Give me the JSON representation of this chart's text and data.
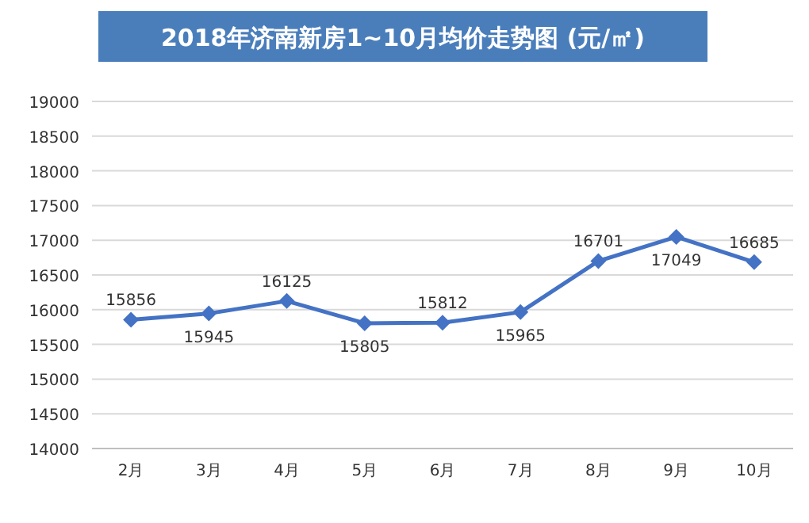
{
  "chart_data": {
    "type": "line",
    "title": "2018年济南新房1~10月均价走势图 (元/㎡)",
    "categories": [
      "2月",
      "3月",
      "4月",
      "5月",
      "6月",
      "7月",
      "8月",
      "9月",
      "10月"
    ],
    "values": [
      15856,
      15945,
      16125,
      15805,
      15812,
      15965,
      16701,
      17049,
      16685
    ],
    "color": "#4472c4",
    "ylim": [
      14000,
      19000
    ],
    "yticks": [
      14000,
      14500,
      15000,
      15500,
      16000,
      16500,
      17000,
      17500,
      18000,
      18500,
      19000
    ],
    "grid": "y",
    "marker": "diamond",
    "data_labels": true
  }
}
